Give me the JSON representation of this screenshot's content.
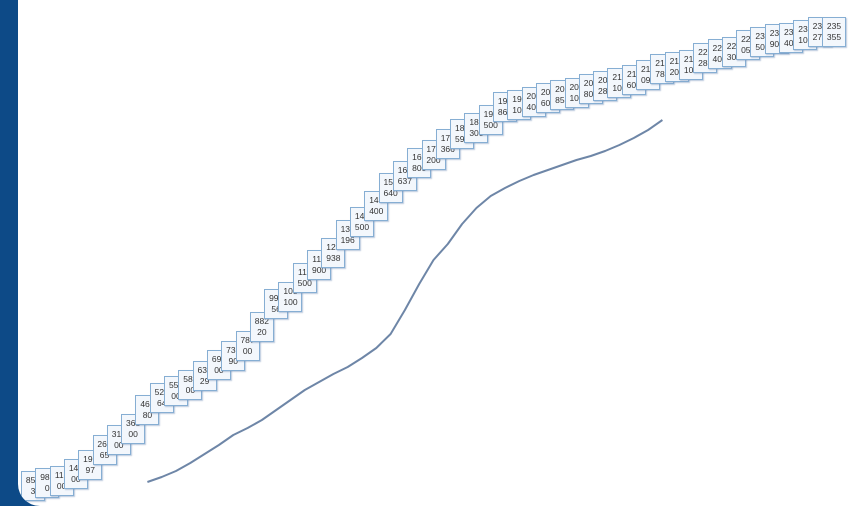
{
  "chart_data": {
    "type": "line",
    "categories": [
      null,
      null,
      null,
      null,
      null,
      null,
      null,
      null,
      null,
      null,
      null,
      null,
      null,
      null,
      null,
      null,
      null,
      null,
      null,
      null,
      null,
      null,
      null,
      null,
      null,
      null,
      null,
      null,
      null,
      null,
      null,
      null,
      null,
      null,
      null,
      null,
      null,
      null,
      null,
      null,
      null,
      null,
      null,
      null,
      null,
      null,
      null,
      null,
      null,
      null,
      null,
      null,
      null,
      null,
      null,
      null,
      null
    ],
    "ylim": [
      0,
      240000
    ],
    "series": [
      {
        "color": "#a8a8a8",
        "labels": true,
        "values": [
          8563,
          9800,
          11200,
          14600,
          19097,
          26565,
          31400,
          36800,
          46680,
          52664,
          55800,
          58900,
          63429,
          69200,
          73590,
          78700,
          88220,
          99356,
          103100,
          112500,
          118900,
          124938,
          134196,
          140500,
          148400,
          157640,
          163637,
          169800,
          174200,
          179366,
          184594,
          187300,
          191500,
          197862,
          199100,
          200400,
          202600,
          203856,
          205100,
          206800,
          208283,
          210100,
          211600,
          214096,
          216780,
          218200,
          219100,
          222286,
          224400,
          225300,
          229053,
          230508,
          231900,
          232400,
          234100,
          235278,
          235355
        ]
      },
      {
        "color": "#6e86a7",
        "labels": false,
        "values": [
          null,
          null,
          null,
          null,
          null,
          null,
          null,
          null,
          9000,
          11500,
          14500,
          18500,
          23000,
          27500,
          32500,
          36000,
          40000,
          45000,
          50000,
          55000,
          59000,
          63000,
          66500,
          71000,
          76000,
          83000,
          95000,
          108000,
          120000,
          128000,
          138000,
          146000,
          152000,
          156000,
          159500,
          162500,
          165000,
          167500,
          170000,
          172000,
          174500,
          177500,
          181000,
          185000,
          190000,
          null,
          null,
          null,
          null,
          null,
          null,
          null,
          null,
          null,
          null,
          null,
          null
        ]
      }
    ]
  }
}
